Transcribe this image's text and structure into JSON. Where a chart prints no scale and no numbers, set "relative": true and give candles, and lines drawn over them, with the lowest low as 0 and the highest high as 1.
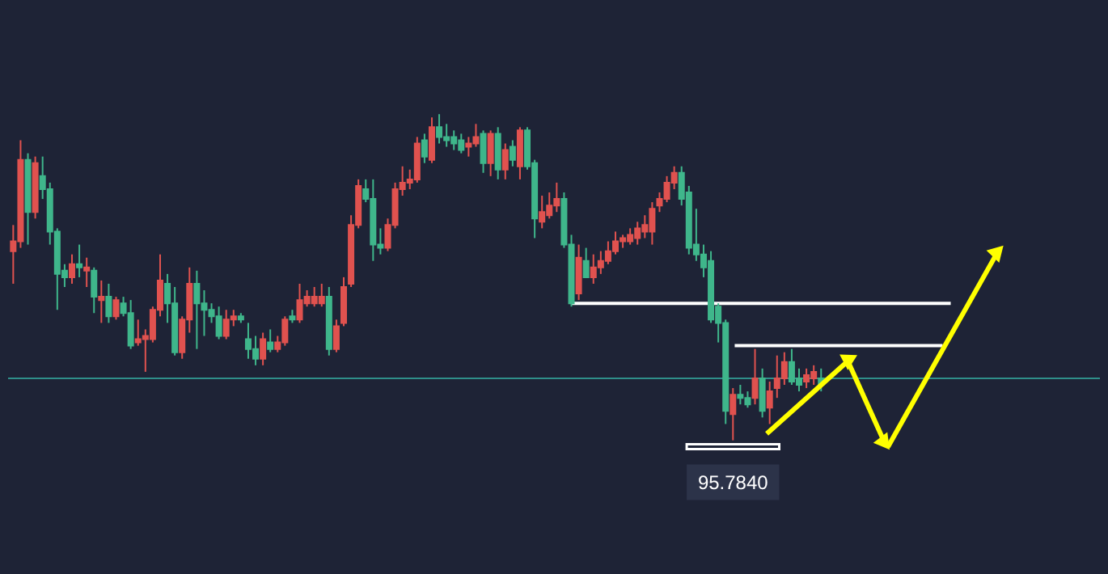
{
  "chart_data": {
    "type": "candlestick",
    "relative": true,
    "categories": [
      null,
      null,
      null,
      null,
      null,
      null,
      null,
      null,
      null,
      null,
      null,
      null,
      null,
      null,
      null,
      null,
      null,
      null,
      null,
      null,
      null,
      null,
      null,
      null,
      null,
      null,
      null,
      null,
      null,
      null,
      null,
      null,
      null,
      null,
      null,
      null,
      null,
      null,
      null,
      null,
      null,
      null,
      null,
      null,
      null,
      null,
      null,
      null,
      null,
      null,
      null,
      null,
      null,
      null,
      null,
      null,
      null,
      null,
      null,
      null,
      null,
      null,
      null,
      null,
      null,
      null,
      null,
      null,
      null,
      null,
      null,
      null,
      null,
      null,
      null,
      null,
      null,
      null,
      null,
      null,
      null,
      null,
      null,
      null,
      null,
      null,
      null,
      null,
      null,
      null,
      null,
      null,
      null,
      null,
      null,
      null,
      null,
      null,
      null,
      null,
      null,
      null,
      null,
      null,
      null,
      null,
      null,
      null,
      null,
      null,
      null
    ],
    "ohlc": [
      [
        0.58,
        0.66,
        0.48,
        0.61
      ],
      [
        0.61,
        0.92,
        0.59,
        0.86
      ],
      [
        0.86,
        0.88,
        0.6,
        0.7
      ],
      [
        0.7,
        0.87,
        0.68,
        0.85
      ],
      [
        0.81,
        0.87,
        0.74,
        0.77
      ],
      [
        0.77,
        0.79,
        0.6,
        0.64
      ],
      [
        0.64,
        0.65,
        0.4,
        0.51
      ],
      [
        0.52,
        0.54,
        0.47,
        0.5
      ],
      [
        0.5,
        0.57,
        0.48,
        0.54
      ],
      [
        0.54,
        0.6,
        0.5,
        0.53
      ],
      [
        0.52,
        0.56,
        0.47,
        0.53
      ],
      [
        0.52,
        0.53,
        0.39,
        0.44
      ],
      [
        0.43,
        0.49,
        0.36,
        0.44
      ],
      [
        0.44,
        0.48,
        0.36,
        0.38
      ],
      [
        0.38,
        0.44,
        0.37,
        0.43
      ],
      [
        0.42,
        0.44,
        0.38,
        0.39
      ],
      [
        0.39,
        0.43,
        0.28,
        0.29
      ],
      [
        0.3,
        0.37,
        0.29,
        0.31
      ],
      [
        0.31,
        0.34,
        0.21,
        0.32
      ],
      [
        0.31,
        0.41,
        0.3,
        0.4
      ],
      [
        0.4,
        0.57,
        0.38,
        0.49
      ],
      [
        0.48,
        0.51,
        0.36,
        0.42
      ],
      [
        0.42,
        0.47,
        0.26,
        0.27
      ],
      [
        0.27,
        0.38,
        0.25,
        0.37
      ],
      [
        0.37,
        0.53,
        0.33,
        0.48
      ],
      [
        0.48,
        0.52,
        0.28,
        0.42
      ],
      [
        0.42,
        0.46,
        0.32,
        0.4
      ],
      [
        0.4,
        0.42,
        0.36,
        0.38
      ],
      [
        0.38,
        0.41,
        0.31,
        0.32
      ],
      [
        0.32,
        0.4,
        0.31,
        0.37
      ],
      [
        0.37,
        0.4,
        0.35,
        0.38
      ],
      [
        0.38,
        0.39,
        0.36,
        0.37
      ],
      [
        0.31,
        0.36,
        0.25,
        0.28
      ],
      [
        0.28,
        0.32,
        0.23,
        0.25
      ],
      [
        0.25,
        0.33,
        0.23,
        0.31
      ],
      [
        0.3,
        0.34,
        0.27,
        0.28
      ],
      [
        0.28,
        0.32,
        0.27,
        0.3
      ],
      [
        0.3,
        0.38,
        0.29,
        0.37
      ],
      [
        0.38,
        0.4,
        0.36,
        0.37
      ],
      [
        0.37,
        0.48,
        0.36,
        0.43
      ],
      [
        0.42,
        0.46,
        0.41,
        0.44
      ],
      [
        0.42,
        0.47,
        0.41,
        0.44
      ],
      [
        0.42,
        0.48,
        0.41,
        0.44
      ],
      [
        0.44,
        0.47,
        0.26,
        0.28
      ],
      [
        0.28,
        0.37,
        0.27,
        0.35
      ],
      [
        0.36,
        0.5,
        0.35,
        0.47
      ],
      [
        0.48,
        0.69,
        0.47,
        0.66
      ],
      [
        0.66,
        0.8,
        0.65,
        0.78
      ],
      [
        0.77,
        0.8,
        0.73,
        0.74
      ],
      [
        0.74,
        0.8,
        0.55,
        0.6
      ],
      [
        0.6,
        0.65,
        0.57,
        0.59
      ],
      [
        0.59,
        0.68,
        0.58,
        0.66
      ],
      [
        0.66,
        0.79,
        0.65,
        0.77
      ],
      [
        0.77,
        0.84,
        0.75,
        0.79
      ],
      [
        0.79,
        0.83,
        0.77,
        0.8
      ],
      [
        0.8,
        0.93,
        0.79,
        0.91
      ],
      [
        0.92,
        0.94,
        0.85,
        0.87
      ],
      [
        0.86,
        0.99,
        0.85,
        0.96
      ],
      [
        0.96,
        1.0,
        0.91,
        0.93
      ],
      [
        0.93,
        0.97,
        0.9,
        0.92
      ],
      [
        0.93,
        0.95,
        0.89,
        0.91
      ],
      [
        0.92,
        0.94,
        0.88,
        0.89
      ],
      [
        0.9,
        0.93,
        0.87,
        0.91
      ],
      [
        0.91,
        0.97,
        0.9,
        0.93
      ],
      [
        0.94,
        0.95,
        0.82,
        0.85
      ],
      [
        0.85,
        0.95,
        0.81,
        0.94
      ],
      [
        0.94,
        0.96,
        0.8,
        0.83
      ],
      [
        0.83,
        0.91,
        0.8,
        0.89
      ],
      [
        0.9,
        0.92,
        0.84,
        0.86
      ],
      [
        0.84,
        0.96,
        0.8,
        0.95
      ],
      [
        0.95,
        0.96,
        0.83,
        0.84
      ],
      [
        0.85,
        0.86,
        0.62,
        0.68
      ],
      [
        0.67,
        0.75,
        0.65,
        0.7
      ],
      [
        0.69,
        0.76,
        0.68,
        0.72
      ],
      [
        0.72,
        0.79,
        0.7,
        0.74
      ],
      [
        0.74,
        0.76,
        0.59,
        0.6
      ],
      [
        0.6,
        0.63,
        0.41,
        0.42
      ],
      [
        0.45,
        0.6,
        0.43,
        0.56
      ],
      [
        0.55,
        0.59,
        0.5,
        0.5
      ],
      [
        0.5,
        0.57,
        0.48,
        0.53
      ],
      [
        0.53,
        0.58,
        0.51,
        0.55
      ],
      [
        0.55,
        0.61,
        0.54,
        0.58
      ],
      [
        0.58,
        0.64,
        0.57,
        0.61
      ],
      [
        0.61,
        0.63,
        0.59,
        0.62
      ],
      [
        0.61,
        0.65,
        0.6,
        0.63
      ],
      [
        0.62,
        0.67,
        0.6,
        0.65
      ],
      [
        0.64,
        0.69,
        0.62,
        0.66
      ],
      [
        0.64,
        0.73,
        0.6,
        0.71
      ],
      [
        0.72,
        0.76,
        0.7,
        0.74
      ],
      [
        0.74,
        0.81,
        0.73,
        0.79
      ],
      [
        0.79,
        0.84,
        0.77,
        0.82
      ],
      [
        0.82,
        0.84,
        0.72,
        0.74
      ],
      [
        0.76,
        0.78,
        0.57,
        0.59
      ],
      [
        0.6,
        0.71,
        0.55,
        0.57
      ],
      [
        0.57,
        0.6,
        0.5,
        0.53
      ],
      [
        0.55,
        0.58,
        0.36,
        0.37
      ],
      [
        0.41,
        0.42,
        0.3,
        0.36
      ],
      [
        0.36,
        0.37,
        0.05,
        0.09
      ],
      [
        0.08,
        0.16,
        0.0,
        0.14
      ],
      [
        0.14,
        0.17,
        0.11,
        0.13
      ],
      [
        0.13,
        0.15,
        0.1,
        0.11
      ],
      [
        0.13,
        0.28,
        0.11,
        0.19
      ],
      [
        0.19,
        0.22,
        0.07,
        0.09
      ],
      [
        0.1,
        0.18,
        0.05,
        0.15
      ],
      [
        0.16,
        0.26,
        0.13,
        0.19
      ],
      [
        0.19,
        0.27,
        0.17,
        0.24
      ],
      [
        0.24,
        0.28,
        0.17,
        0.18
      ],
      [
        0.19,
        0.22,
        0.15,
        0.17
      ],
      [
        0.18,
        0.22,
        0.16,
        0.2
      ],
      [
        0.19,
        0.23,
        0.17,
        0.21
      ],
      [
        0.19,
        0.22,
        0.15,
        0.17
      ]
    ],
    "colors": [
      "#e0524f",
      "#e0524f",
      "#3fb68b",
      "#e0524f",
      "#3fb68b",
      "#3fb68b",
      "#3fb68b",
      "#3fb68b",
      "#e0524f",
      "#3fb68b",
      "#e0524f",
      "#3fb68b",
      "#e0524f",
      "#3fb68b",
      "#e0524f",
      "#3fb68b",
      "#3fb68b",
      "#e0524f",
      "#e0524f",
      "#e0524f",
      "#e0524f",
      "#3fb68b",
      "#3fb68b",
      "#e0524f",
      "#e0524f",
      "#3fb68b",
      "#3fb68b",
      "#3fb68b",
      "#3fb68b",
      "#e0524f",
      "#e0524f",
      "#3fb68b",
      "#3fb68b",
      "#3fb68b",
      "#e0524f",
      "#3fb68b",
      "#e0524f",
      "#e0524f",
      "#3fb68b",
      "#e0524f",
      "#e0524f",
      "#e0524f",
      "#e0524f",
      "#3fb68b",
      "#e0524f",
      "#e0524f",
      "#e0524f",
      "#e0524f",
      "#3fb68b",
      "#3fb68b",
      "#3fb68b",
      "#e0524f",
      "#e0524f",
      "#e0524f",
      "#e0524f",
      "#e0524f",
      "#3fb68b",
      "#e0524f",
      "#3fb68b",
      "#3fb68b",
      "#3fb68b",
      "#3fb68b",
      "#e0524f",
      "#e0524f",
      "#3fb68b",
      "#e0524f",
      "#3fb68b",
      "#e0524f",
      "#3fb68b",
      "#e0524f",
      "#3fb68b",
      "#3fb68b",
      "#e0524f",
      "#e0524f",
      "#e0524f",
      "#3fb68b",
      "#3fb68b",
      "#e0524f",
      "#3fb68b",
      "#e0524f",
      "#e0524f",
      "#e0524f",
      "#e0524f",
      "#e0524f",
      "#e0524f",
      "#e0524f",
      "#e0524f",
      "#e0524f",
      "#e0524f",
      "#e0524f",
      "#e0524f",
      "#3fb68b",
      "#3fb68b",
      "#3fb68b",
      "#3fb68b",
      "#3fb68b",
      "#3fb68b",
      "#3fb68b",
      "#e0524f",
      "#3fb68b",
      "#3fb68b",
      "#e0524f",
      "#3fb68b",
      "#e0524f",
      "#e0524f",
      "#e0524f",
      "#3fb68b",
      "#3fb68b",
      "#e0524f",
      "#e0524f",
      "#3fb68b"
    ],
    "ref_lines": [
      {
        "axis": "y",
        "value": 0.42,
        "color": "#ffffff"
      },
      {
        "axis": "y",
        "value": 0.29,
        "color": "#ffffff"
      },
      {
        "axis": "y",
        "value": 0.19,
        "color": "#2f8f8a"
      }
    ],
    "annotations": [
      {
        "text": "95.7840",
        "y": 0
      }
    ]
  }
}
